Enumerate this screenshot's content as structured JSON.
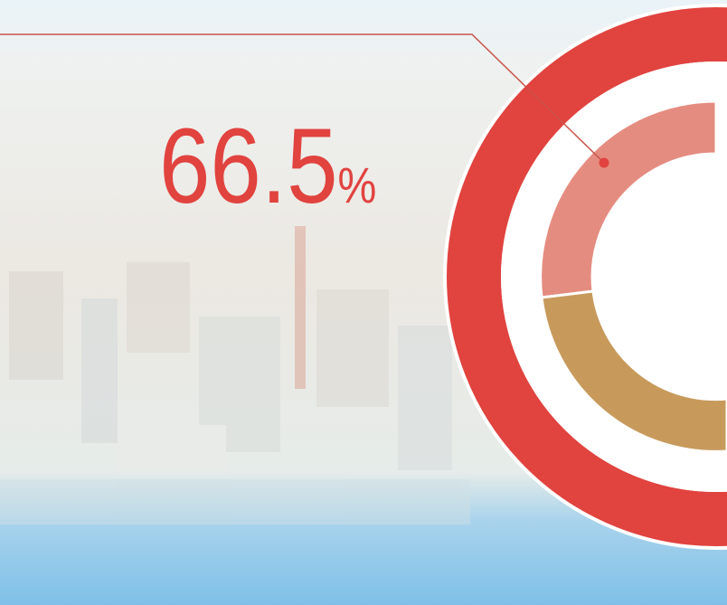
{
  "headline": {
    "number": "66.5",
    "unit": "%"
  }
}
